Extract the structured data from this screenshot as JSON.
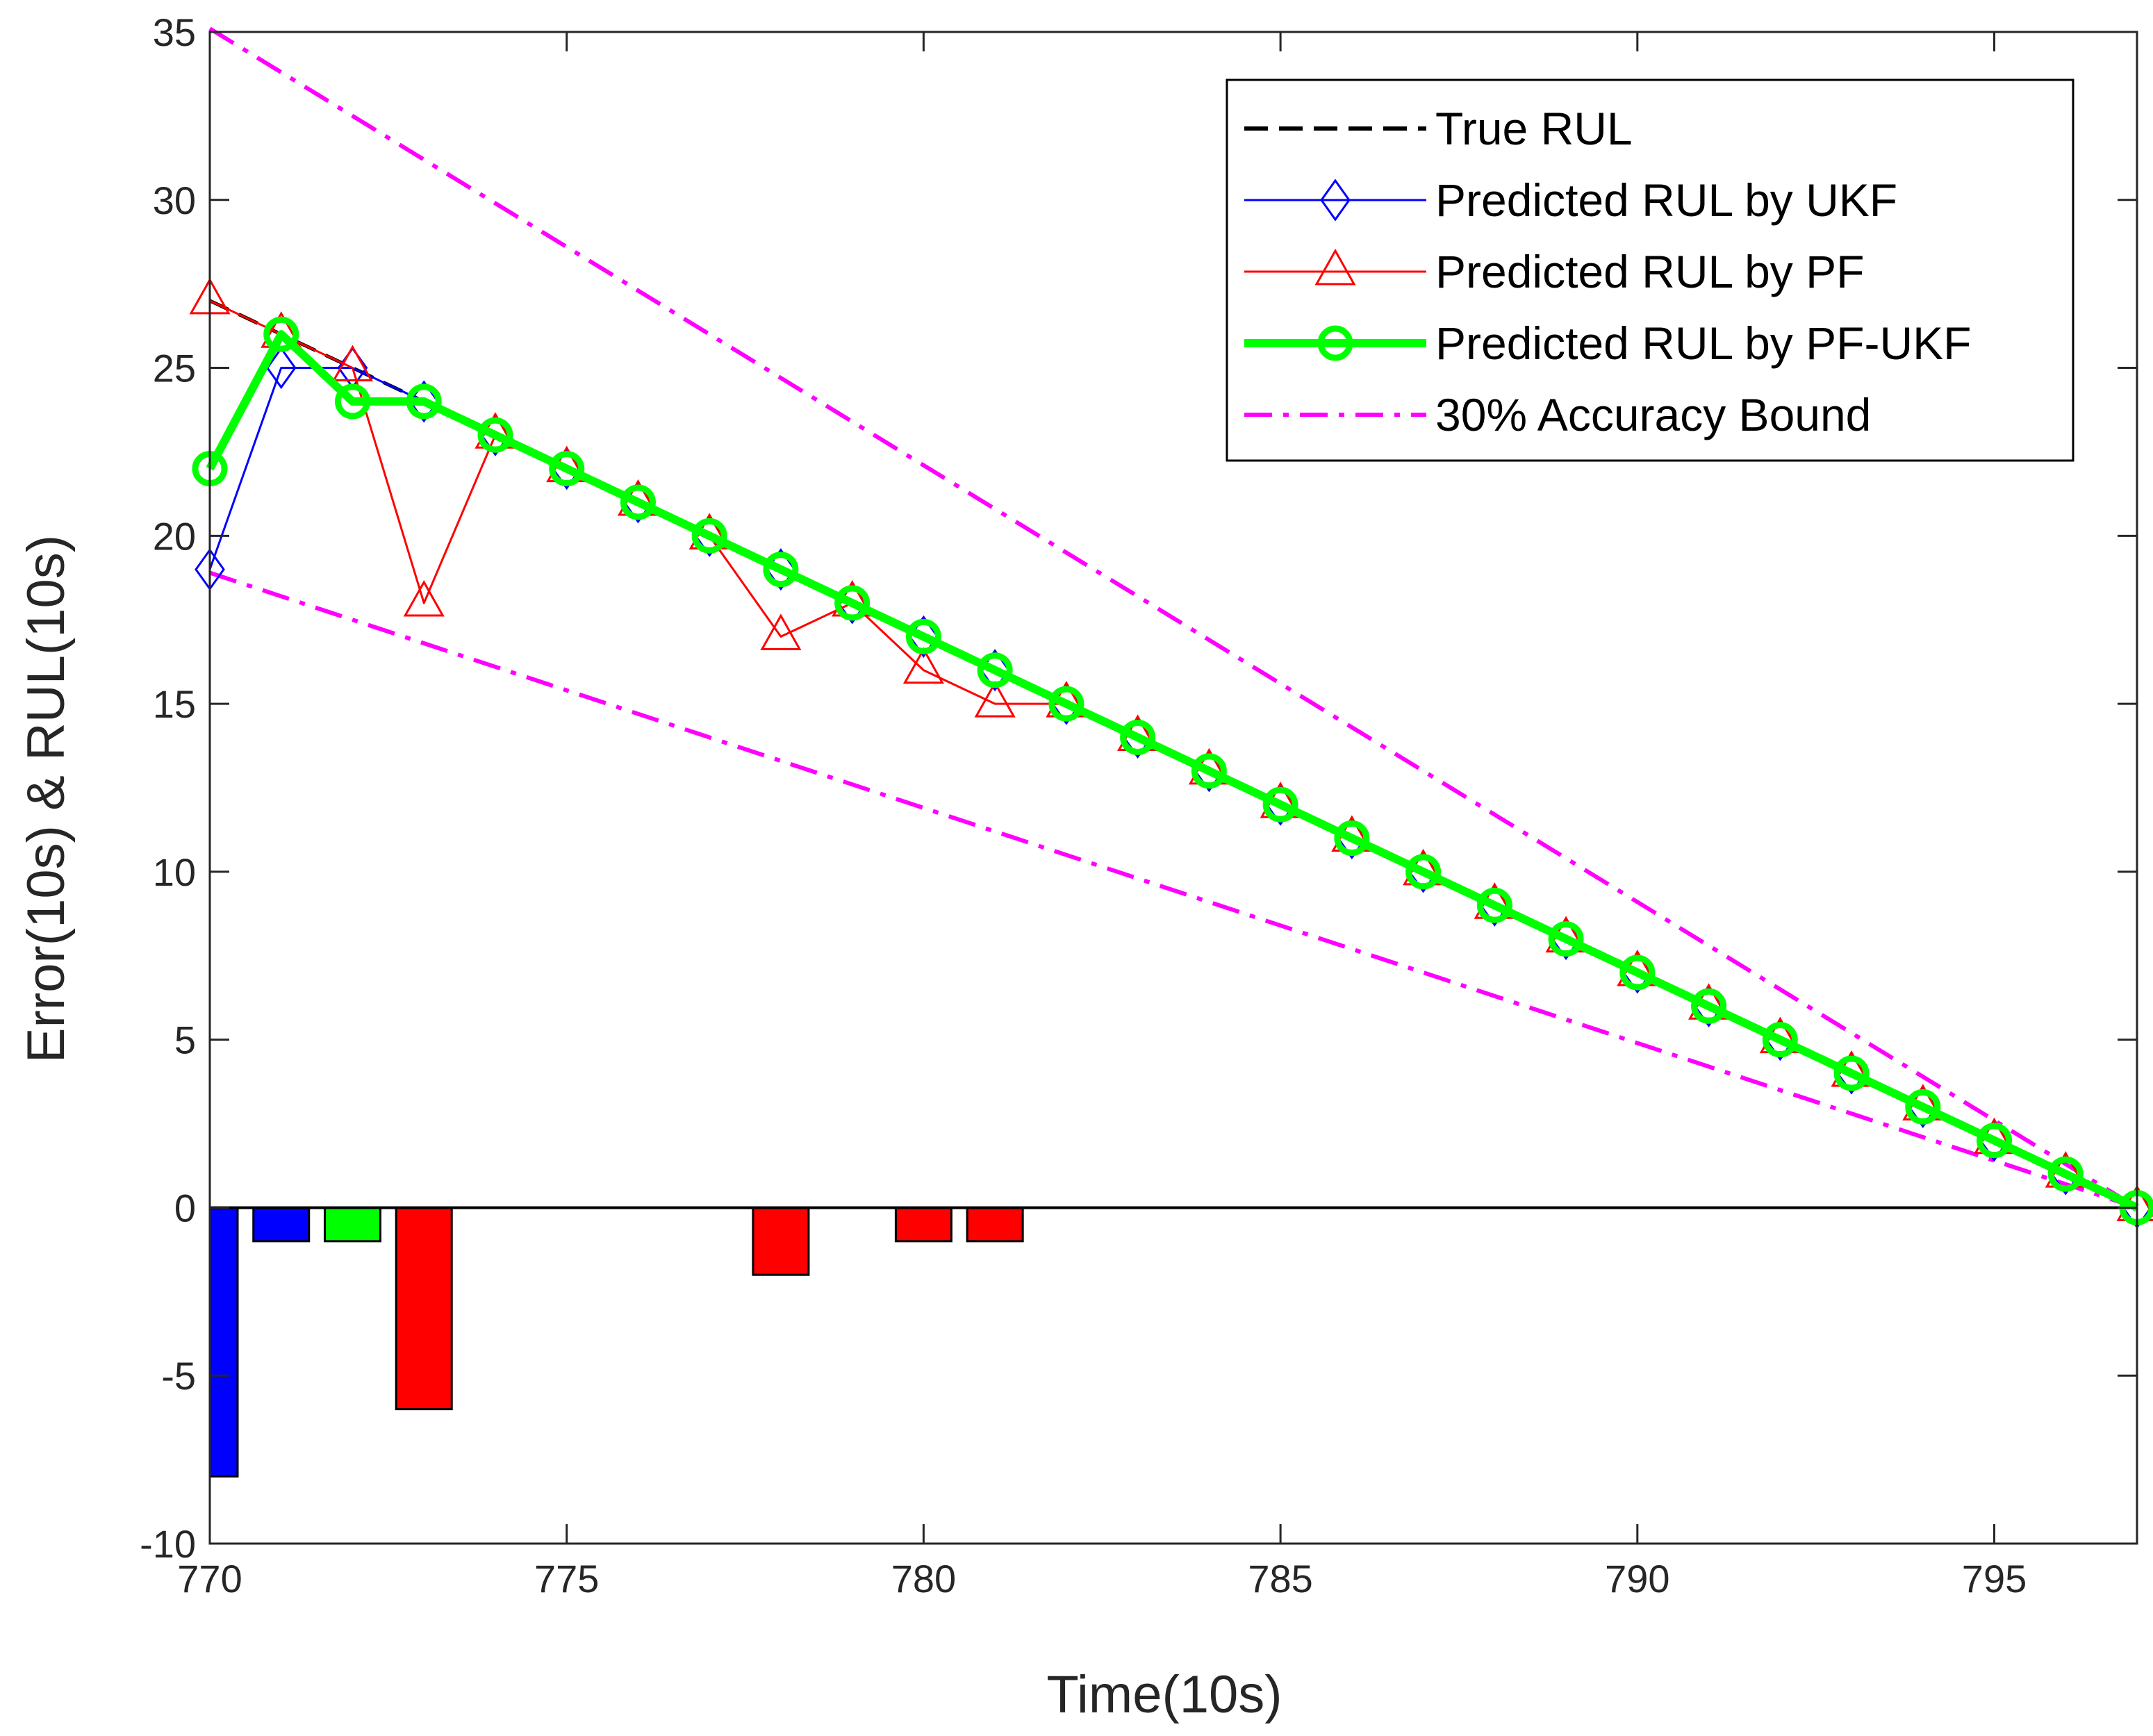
{
  "chart_data": {
    "type": "line",
    "title": "",
    "xlabel": "Time(10s)",
    "ylabel": "Error(10s) & RUL(10s)",
    "xlim": [
      770,
      797
    ],
    "ylim": [
      -10,
      35
    ],
    "xticks": [
      770,
      775,
      780,
      785,
      790,
      795
    ],
    "yticks": [
      -10,
      -5,
      0,
      5,
      10,
      15,
      20,
      25,
      30,
      35
    ],
    "grid": false,
    "legend_position": "top-right",
    "x": [
      770,
      771,
      772,
      773,
      774,
      775,
      776,
      777,
      778,
      779,
      780,
      781,
      782,
      783,
      784,
      785,
      786,
      787,
      788,
      789,
      790,
      791,
      792,
      793,
      794,
      795,
      796,
      797
    ],
    "series": [
      {
        "name": "True RUL",
        "color": "#000000",
        "style": "dashed",
        "marker": "none",
        "values": [
          27,
          26,
          25,
          24,
          23,
          22,
          21,
          20,
          19,
          18,
          17,
          16,
          15,
          14,
          13,
          12,
          11,
          10,
          9,
          8,
          7,
          6,
          5,
          4,
          3,
          2,
          1,
          0
        ]
      },
      {
        "name": "Predicted RUL by UKF",
        "color": "#0000ff",
        "style": "solid",
        "marker": "diamond",
        "values": [
          19,
          25,
          25,
          24,
          23,
          22,
          21,
          20,
          19,
          18,
          17,
          16,
          15,
          14,
          13,
          12,
          11,
          10,
          9,
          8,
          7,
          6,
          5,
          4,
          3,
          2,
          1,
          0
        ]
      },
      {
        "name": "Predicted RUL by PF",
        "color": "#ff0000",
        "style": "solid",
        "marker": "triangle",
        "values": [
          27,
          26,
          25,
          18,
          23,
          22,
          21,
          20,
          17,
          18,
          16,
          15,
          15,
          14,
          13,
          12,
          11,
          10,
          9,
          8,
          7,
          6,
          5,
          4,
          3,
          2,
          1,
          0
        ]
      },
      {
        "name": "Predicted RUL by PF-UKF",
        "color": "#00ff00",
        "style": "solid-thick",
        "marker": "circle",
        "values": [
          22,
          26,
          24,
          24,
          23,
          22,
          21,
          20,
          19,
          18,
          17,
          16,
          15,
          14,
          13,
          12,
          11,
          10,
          9,
          8,
          7,
          6,
          5,
          4,
          3,
          2,
          1,
          0
        ]
      },
      {
        "name": "30% Accuracy Bound",
        "color": "#ff00ff",
        "style": "dashdot",
        "marker": "none",
        "upper": {
          "x": [
            770,
            797
          ],
          "values": [
            35.1,
            0
          ]
        },
        "lower": {
          "x": [
            770,
            797
          ],
          "values": [
            18.9,
            0
          ]
        }
      }
    ],
    "error_bars": [
      {
        "x": 770,
        "value": -8,
        "color": "#0000ff"
      },
      {
        "x": 771,
        "value": -1,
        "color": "#0000ff"
      },
      {
        "x": 772,
        "value": -1,
        "color": "#00ff00"
      },
      {
        "x": 773,
        "value": -6,
        "color": "#ff0000"
      },
      {
        "x": 778,
        "value": -2,
        "color": "#ff0000"
      },
      {
        "x": 780,
        "value": -1,
        "color": "#ff0000"
      },
      {
        "x": 781,
        "value": -1,
        "color": "#ff0000"
      }
    ]
  }
}
